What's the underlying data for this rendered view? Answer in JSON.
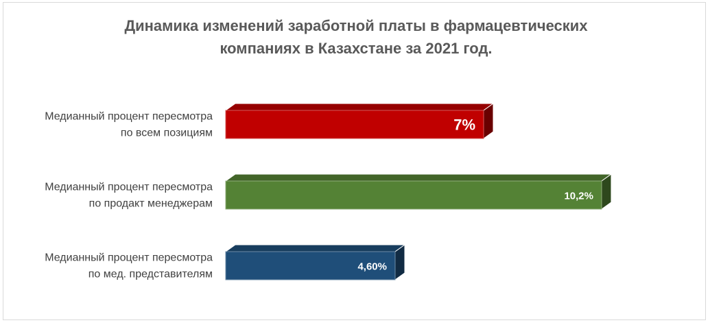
{
  "chart_data": {
    "type": "bar",
    "orientation": "horizontal",
    "style": "3d",
    "title_lines": [
      "Динамика изменений заработной платы в фармацевтических",
      "компаниях в Казахстане за 2021 год."
    ],
    "categories": [
      [
        "Медианный процент пересмотра",
        "по всем позициям"
      ],
      [
        "Медианный процент пересмотра",
        "по продакт менеджерам"
      ],
      [
        "Медианный процент пересмотра",
        "по мед. представителям"
      ]
    ],
    "values": [
      7,
      10.2,
      4.6
    ],
    "value_labels": [
      "7%",
      "10,2%",
      "4,60%"
    ],
    "colors": [
      "#c00000",
      "#548235",
      "#1f4e79"
    ],
    "xlim": [
      0,
      10.2
    ],
    "axis_visible": false,
    "grid": false,
    "legend": "none"
  }
}
